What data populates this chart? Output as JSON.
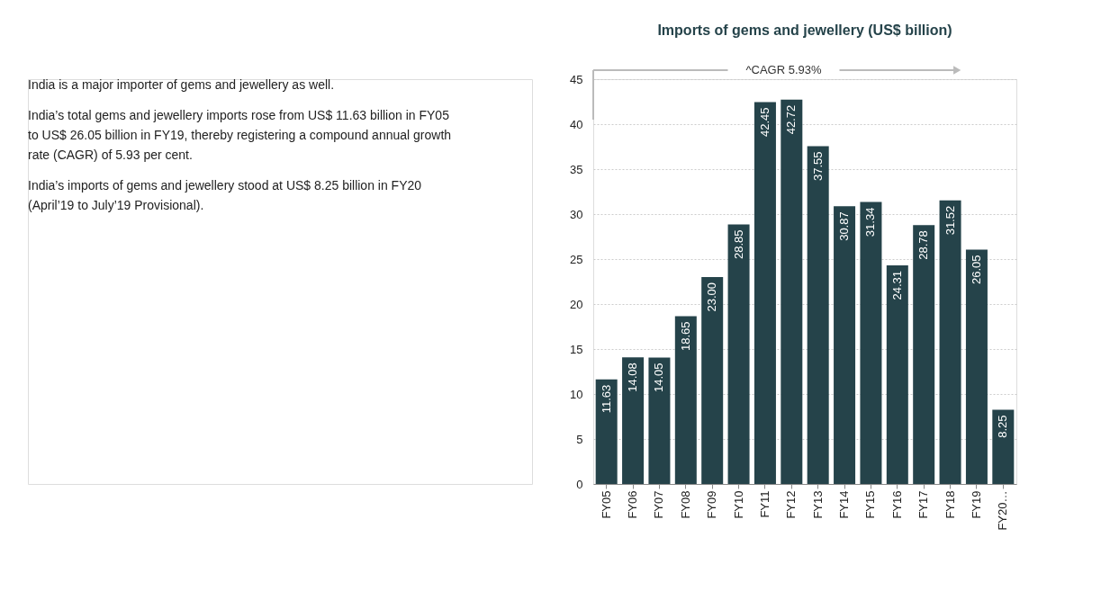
{
  "chart_data": {
    "type": "bar",
    "title": "Imports of gems and jewellery (US$ billion)",
    "categories": [
      "FY05",
      "FY06",
      "FY07",
      "FY08",
      "FY09",
      "FY10",
      "FY11",
      "FY12",
      "FY13",
      "FY14",
      "FY15",
      "FY16",
      "FY17",
      "FY18",
      "FY19",
      "FY20…"
    ],
    "values": [
      11.63,
      14.08,
      14.05,
      18.65,
      23.0,
      28.85,
      42.45,
      42.72,
      37.55,
      30.87,
      31.34,
      24.31,
      28.78,
      31.52,
      26.05,
      8.25
    ],
    "value_labels": [
      "11.63",
      "14.08",
      "14.05",
      "18.65",
      "23.00",
      "28.85",
      "42.45",
      "42.72",
      "37.55",
      "30.87",
      "31.34",
      "24.31",
      "28.78",
      "31.52",
      "26.05",
      "8.25"
    ],
    "color": "#25434a",
    "ylim": [
      0,
      45
    ],
    "yticks": [
      0,
      5,
      10,
      15,
      20,
      25,
      30,
      35,
      40,
      45
    ],
    "grid": "y",
    "annotations": [
      "India is a major importer of gems and jewellery as well.",
      "India’s total gems and jewellery imports rose from US$ 11.63 billion in FY05 to US$ 26.05 billion in FY19, thereby registering a compound annual growth rate (CAGR) of 5.93 per cent.",
      "India’s imports of gems and jewellery stood at US$ 8.25 billion in FY20 (April’19 to July’19 Provisional).",
      "^CAGR 5.93%"
    ]
  }
}
